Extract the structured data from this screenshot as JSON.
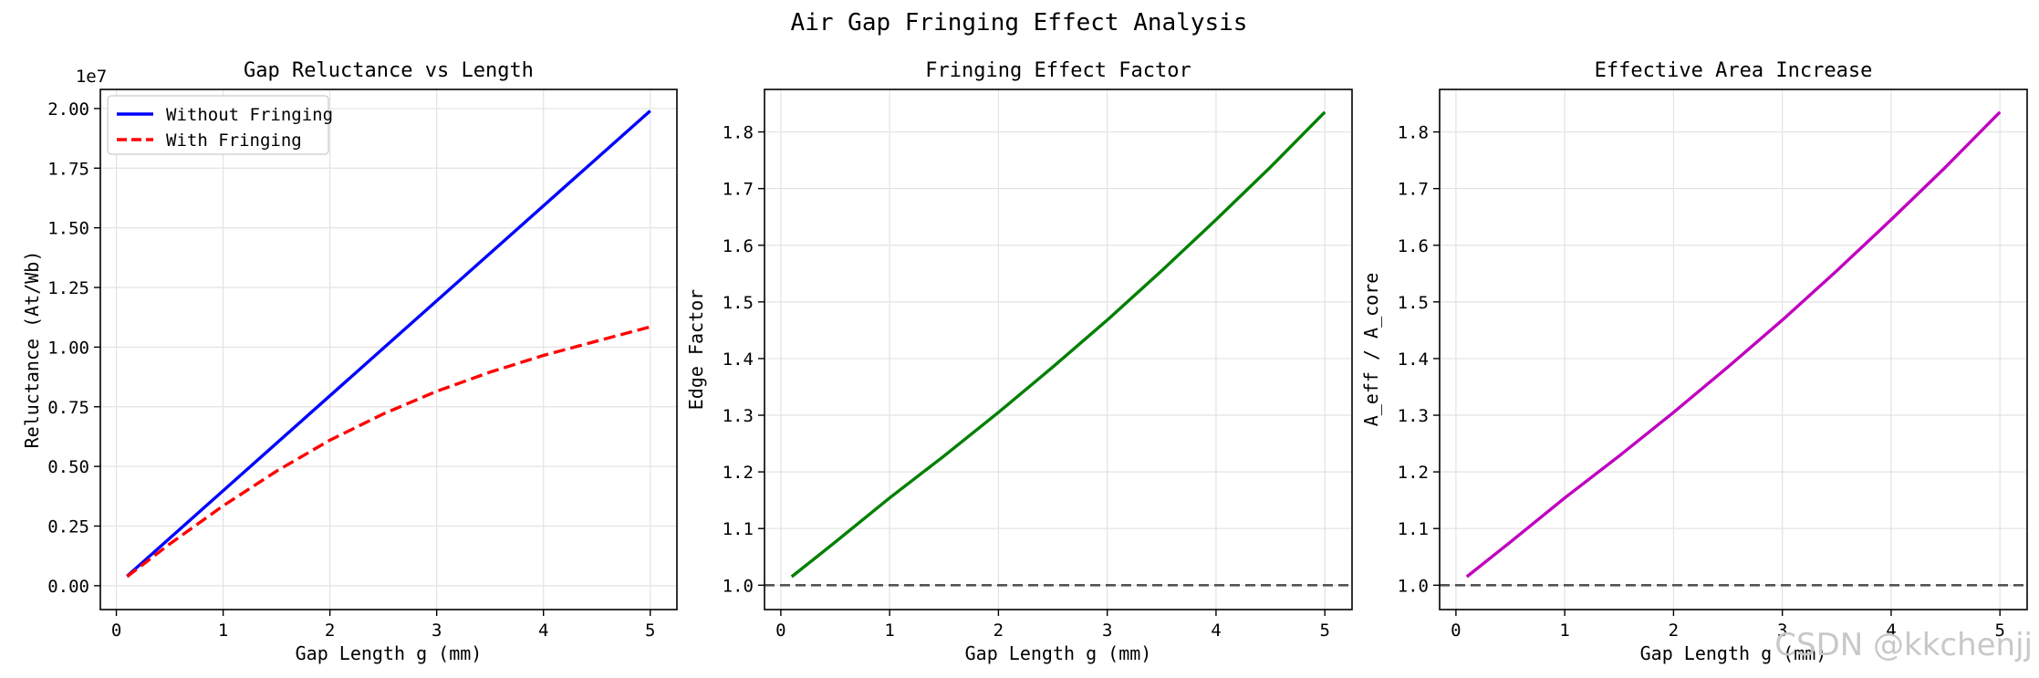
{
  "figure": {
    "suptitle": "Air Gap Fringing Effect Analysis",
    "watermark": "CSDN @kkchenjj"
  },
  "chart_data": [
    {
      "type": "line",
      "title": "Gap Reluctance vs Length",
      "xlabel": "Gap Length g (mm)",
      "ylabel": "Reluctance (At/Wb)",
      "offset_text": "1e7",
      "xlim": [
        -0.15,
        5.25
      ],
      "ylim": [
        -0.1,
        2.08
      ],
      "xticks": [
        0,
        1,
        2,
        3,
        4,
        5
      ],
      "yticks": [
        0.0,
        0.25,
        0.5,
        0.75,
        1.0,
        1.25,
        1.5,
        1.75,
        2.0
      ],
      "ytick_labels": [
        "0.00",
        "0.25",
        "0.50",
        "0.75",
        "1.00",
        "1.25",
        "1.50",
        "1.75",
        "2.00"
      ],
      "grid": true,
      "legend_position": "upper left",
      "series": [
        {
          "name": "Without Fringing",
          "color": "#0000ff",
          "style": "solid",
          "x": [
            0.1,
            5.0
          ],
          "y": [
            0.04,
            1.99
          ]
        },
        {
          "name": "With Fringing",
          "color": "#ff0000",
          "style": "dashed",
          "x": [
            0.1,
            0.5,
            1.0,
            1.5,
            2.0,
            2.5,
            3.0,
            3.5,
            4.0,
            4.5,
            5.0
          ],
          "y": [
            0.038,
            0.175,
            0.335,
            0.48,
            0.61,
            0.72,
            0.815,
            0.895,
            0.965,
            1.025,
            1.085
          ]
        }
      ]
    },
    {
      "type": "line",
      "title": "Fringing Effect Factor",
      "xlabel": "Gap Length g (mm)",
      "ylabel": "Edge Factor",
      "xlim": [
        -0.15,
        5.25
      ],
      "ylim": [
        0.957,
        1.875
      ],
      "xticks": [
        0,
        1,
        2,
        3,
        4,
        5
      ],
      "yticks": [
        1.0,
        1.1,
        1.2,
        1.3,
        1.4,
        1.5,
        1.6,
        1.7,
        1.8
      ],
      "ytick_labels": [
        "1.0",
        "1.1",
        "1.2",
        "1.3",
        "1.4",
        "1.5",
        "1.6",
        "1.7",
        "1.8"
      ],
      "grid": true,
      "reference_line": {
        "y": 1.0,
        "color": "#555555",
        "style": "dashed"
      },
      "series": [
        {
          "name": "Edge Factor",
          "color": "#008000",
          "style": "solid",
          "x": [
            0.1,
            0.5,
            1.0,
            1.5,
            2.0,
            2.5,
            3.0,
            3.5,
            4.0,
            4.5,
            5.0
          ],
          "y": [
            1.015,
            1.076,
            1.154,
            1.228,
            1.305,
            1.385,
            1.468,
            1.555,
            1.645,
            1.738,
            1.835
          ]
        }
      ]
    },
    {
      "type": "line",
      "title": "Effective Area Increase",
      "xlabel": "Gap Length g (mm)",
      "ylabel": "A_eff / A_core",
      "xlim": [
        -0.15,
        5.25
      ],
      "ylim": [
        0.957,
        1.875
      ],
      "xticks": [
        0,
        1,
        2,
        3,
        4,
        5
      ],
      "yticks": [
        1.0,
        1.1,
        1.2,
        1.3,
        1.4,
        1.5,
        1.6,
        1.7,
        1.8
      ],
      "ytick_labels": [
        "1.0",
        "1.1",
        "1.2",
        "1.3",
        "1.4",
        "1.5",
        "1.6",
        "1.7",
        "1.8"
      ],
      "grid": true,
      "reference_line": {
        "y": 1.0,
        "color": "#555555",
        "style": "dashed"
      },
      "series": [
        {
          "name": "A_eff / A_core",
          "color": "#c000c0",
          "style": "solid",
          "x": [
            0.1,
            0.5,
            1.0,
            1.5,
            2.0,
            2.5,
            3.0,
            3.5,
            4.0,
            4.5,
            5.0
          ],
          "y": [
            1.015,
            1.076,
            1.154,
            1.228,
            1.305,
            1.385,
            1.468,
            1.555,
            1.645,
            1.738,
            1.835
          ]
        }
      ]
    }
  ]
}
